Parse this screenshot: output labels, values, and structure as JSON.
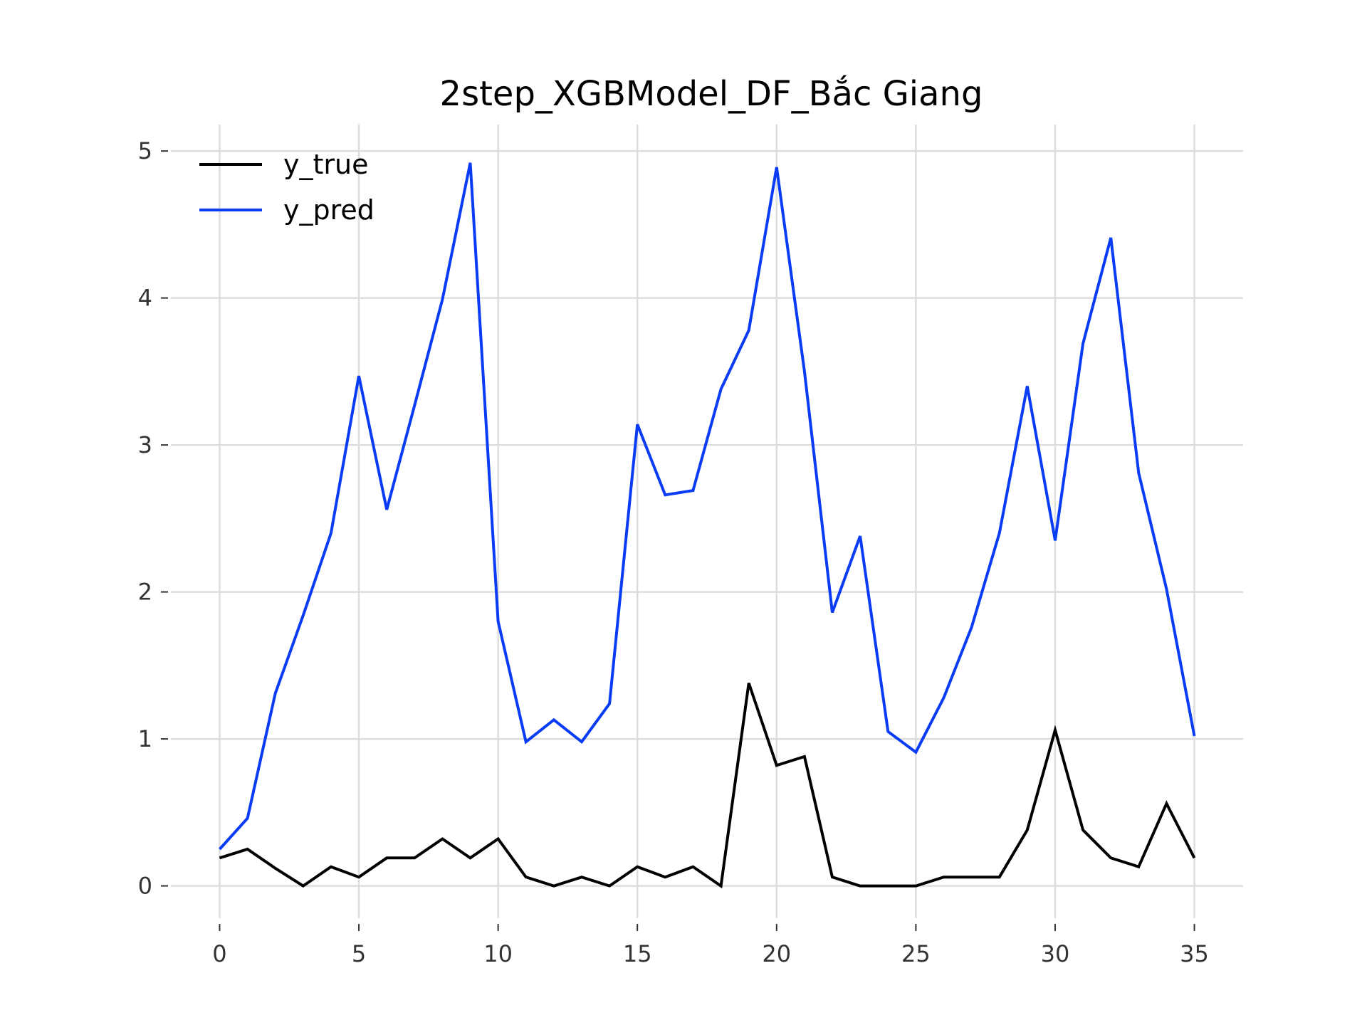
{
  "chart_data": {
    "type": "line",
    "title": "2step_XGBModel_DF_Bắc Giang",
    "xlabel": "",
    "ylabel": "",
    "xlim": [
      -1.75,
      36.75
    ],
    "ylim": [
      -0.22,
      5.18
    ],
    "xticks": [
      0,
      5,
      10,
      15,
      20,
      25,
      30,
      35
    ],
    "yticks": [
      0,
      1,
      2,
      3,
      4,
      5
    ],
    "grid": true,
    "legend_position": "top-left",
    "x": [
      0,
      1,
      2,
      3,
      4,
      5,
      6,
      7,
      8,
      9,
      10,
      11,
      12,
      13,
      14,
      15,
      16,
      17,
      18,
      19,
      20,
      21,
      22,
      23,
      24,
      25,
      26,
      27,
      28,
      29,
      30,
      31,
      32,
      33,
      34,
      35
    ],
    "series": [
      {
        "name": "y_true",
        "color": "#000000",
        "values": [
          0.19,
          0.25,
          0.12,
          0.0,
          0.13,
          0.06,
          0.19,
          0.19,
          0.32,
          0.19,
          0.32,
          0.06,
          0.0,
          0.06,
          0.0,
          0.13,
          0.06,
          0.13,
          0.0,
          1.38,
          0.82,
          0.88,
          0.06,
          0.0,
          0.0,
          0.0,
          0.06,
          0.06,
          0.06,
          0.38,
          1.06,
          0.38,
          0.19,
          0.13,
          0.56,
          0.19
        ]
      },
      {
        "name": "y_pred",
        "color": "#0a3cf5",
        "values": [
          0.25,
          0.46,
          1.31,
          1.84,
          2.4,
          3.47,
          2.56,
          3.27,
          3.99,
          4.92,
          1.8,
          0.98,
          1.13,
          0.98,
          1.24,
          3.14,
          2.66,
          2.69,
          3.38,
          3.78,
          4.89,
          3.5,
          1.86,
          2.38,
          1.05,
          0.91,
          1.28,
          1.76,
          2.4,
          3.4,
          2.35,
          3.69,
          4.41,
          2.81,
          2.02,
          1.02
        ]
      }
    ]
  }
}
